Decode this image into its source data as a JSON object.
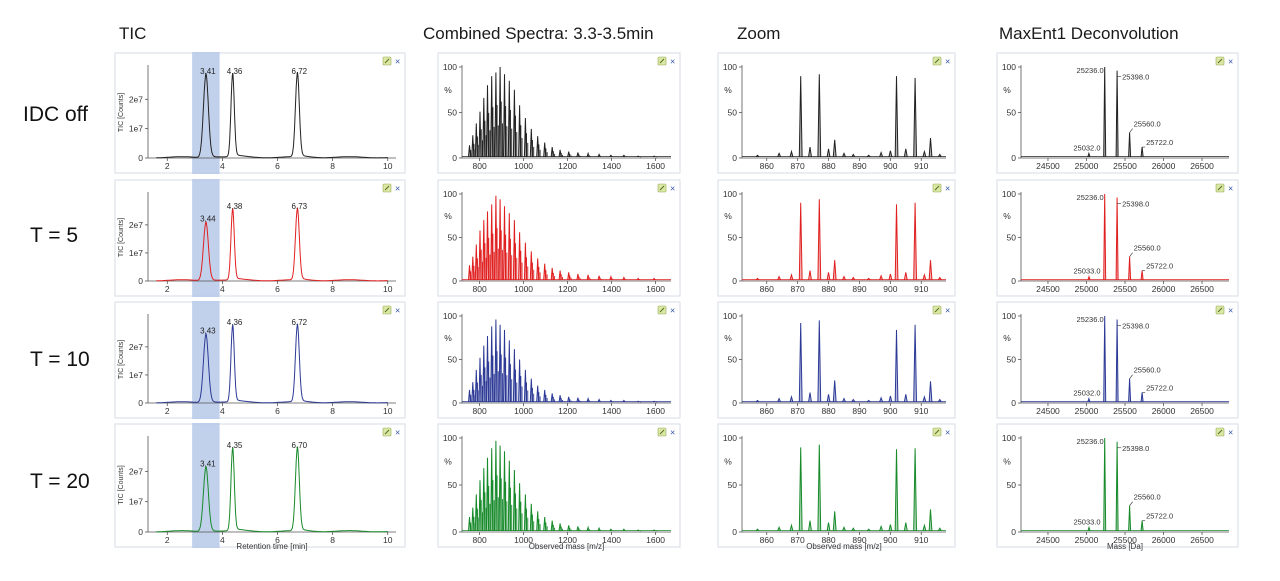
{
  "figure": {
    "column_titles": [
      "TIC",
      "Combined Spectra: 3.3-3.5min",
      "Zoom",
      "MaxEnt1 Deconvolution"
    ],
    "row_labels": [
      "IDC off",
      "T = 5",
      "T = 10",
      "T = 20"
    ],
    "row_colors": [
      "#222222",
      "#e02020",
      "#2c3a96",
      "#178a2a"
    ],
    "highlight_color": "#b7c9e8",
    "panel_icon": "pin-close-icon"
  },
  "chart_data": [
    {
      "panel": "tic",
      "type": "line",
      "title": "TIC",
      "xlabel": "Retention time [min]",
      "ylabel": "TIC [Counts]",
      "xlim": [
        1.3,
        10.3
      ],
      "xticks": [
        2,
        4,
        6,
        8,
        10
      ],
      "ylim": [
        0,
        31000000.0
      ],
      "yticks": [
        0,
        10000000.0,
        20000000.0
      ],
      "yticklabels": [
        "0",
        "1e7",
        "2e7"
      ],
      "highlight_range": [
        3.3,
        3.5
      ],
      "peak_positions": [
        3.4,
        4.37,
        6.72
      ],
      "peak_widths": [
        0.09,
        0.06,
        0.07
      ],
      "series": [
        {
          "name": "IDC off",
          "peak_heights": [
            28000000.0,
            28000000.0,
            28000000.0
          ],
          "peak_labels": [
            "3.41",
            "4.36",
            "6.72"
          ]
        },
        {
          "name": "T = 5",
          "peak_heights": [
            20500000.0,
            25000000.0,
            25000000.0
          ],
          "peak_labels": [
            "3.44",
            "4.38",
            "6.73"
          ]
        },
        {
          "name": "T = 10",
          "peak_heights": [
            24000000.0,
            27000000.0,
            27000000.0
          ],
          "peak_labels": [
            "3.43",
            "4.36",
            "6.72"
          ]
        },
        {
          "name": "T = 20",
          "peak_heights": [
            21000000.0,
            27000000.0,
            27000000.0
          ],
          "peak_labels": [
            "3.41",
            "4.35",
            "6.70"
          ]
        }
      ]
    },
    {
      "panel": "combined",
      "type": "line",
      "title": "Combined Spectra: 3.3-3.5min",
      "xlabel": "Observed mass [m/z]",
      "ylabel": "%",
      "xlim": [
        720,
        1670
      ],
      "xticks": [
        800,
        1000,
        1200,
        1400,
        1600
      ],
      "ylim": [
        0,
        100
      ],
      "yticks": [
        0,
        50,
        100
      ],
      "series": [
        {
          "name": "IDC off",
          "peaks": [
            [
              754,
              14
            ],
            [
              769,
              25
            ],
            [
              785,
              38
            ],
            [
              802,
              51
            ],
            [
              819,
              66
            ],
            [
              836,
              80
            ],
            [
              855,
              90
            ],
            [
              874,
              94
            ],
            [
              893,
              100
            ],
            [
              913,
              92
            ],
            [
              935,
              85
            ],
            [
              958,
              75
            ],
            [
              982,
              58
            ],
            [
              1008,
              44
            ],
            [
              1035,
              32
            ],
            [
              1064,
              24
            ],
            [
              1096,
              17
            ],
            [
              1130,
              12
            ],
            [
              1166,
              9
            ],
            [
              1205,
              7
            ],
            [
              1247,
              6
            ],
            [
              1293,
              5
            ],
            [
              1343,
              4
            ],
            [
              1397,
              3
            ],
            [
              1456,
              3
            ],
            [
              1521,
              2
            ],
            [
              1593,
              2
            ]
          ]
        },
        {
          "name": "T = 5",
          "peaks": [
            [
              754,
              18
            ],
            [
              769,
              28
            ],
            [
              785,
              42
            ],
            [
              802,
              58
            ],
            [
              819,
              70
            ],
            [
              836,
              80
            ],
            [
              855,
              88
            ],
            [
              874,
              98
            ],
            [
              893,
              94
            ],
            [
              913,
              86
            ],
            [
              935,
              78
            ],
            [
              958,
              70
            ],
            [
              982,
              56
            ],
            [
              1008,
              44
            ],
            [
              1035,
              34
            ],
            [
              1064,
              26
            ],
            [
              1096,
              20
            ],
            [
              1130,
              15
            ],
            [
              1166,
              12
            ],
            [
              1205,
              10
            ],
            [
              1247,
              8
            ],
            [
              1293,
              7
            ],
            [
              1343,
              6
            ],
            [
              1397,
              5
            ],
            [
              1456,
              4
            ],
            [
              1521,
              3
            ],
            [
              1593,
              3
            ]
          ]
        },
        {
          "name": "T = 10",
          "peaks": [
            [
              754,
              15
            ],
            [
              769,
              24
            ],
            [
              785,
              38
            ],
            [
              802,
              52
            ],
            [
              819,
              66
            ],
            [
              836,
              77
            ],
            [
              855,
              88
            ],
            [
              874,
              96
            ],
            [
              893,
              90
            ],
            [
              913,
              84
            ],
            [
              935,
              72
            ],
            [
              958,
              62
            ],
            [
              982,
              50
            ],
            [
              1008,
              38
            ],
            [
              1035,
              28
            ],
            [
              1064,
              20
            ],
            [
              1096,
              15
            ],
            [
              1130,
              11
            ],
            [
              1166,
              9
            ],
            [
              1205,
              7
            ],
            [
              1247,
              6
            ],
            [
              1293,
              5
            ],
            [
              1343,
              4
            ],
            [
              1397,
              3
            ],
            [
              1456,
              3
            ],
            [
              1521,
              2
            ],
            [
              1593,
              2
            ]
          ]
        },
        {
          "name": "T = 20",
          "peaks": [
            [
              754,
              16
            ],
            [
              769,
              26
            ],
            [
              785,
              40
            ],
            [
              802,
              55
            ],
            [
              819,
              68
            ],
            [
              836,
              79
            ],
            [
              855,
              89
            ],
            [
              874,
              97
            ],
            [
              893,
              92
            ],
            [
              913,
              86
            ],
            [
              935,
              76
            ],
            [
              958,
              66
            ],
            [
              982,
              52
            ],
            [
              1008,
              40
            ],
            [
              1035,
              30
            ],
            [
              1064,
              22
            ],
            [
              1096,
              16
            ],
            [
              1130,
              12
            ],
            [
              1166,
              9
            ],
            [
              1205,
              7
            ],
            [
              1247,
              6
            ],
            [
              1293,
              5
            ],
            [
              1343,
              4
            ],
            [
              1397,
              3
            ],
            [
              1456,
              3
            ],
            [
              1521,
              2
            ],
            [
              1593,
              2
            ]
          ]
        }
      ]
    },
    {
      "panel": "zoom",
      "type": "line",
      "title": "Zoom",
      "xlabel": "Observed mass [m/z]",
      "ylabel": "%",
      "xlim": [
        852,
        918
      ],
      "xticks": [
        860,
        870,
        880,
        890,
        900,
        910
      ],
      "ylim": [
        0,
        100
      ],
      "yticks": [
        0,
        50,
        100
      ],
      "series": [
        {
          "name": "IDC off",
          "peaks": [
            [
              857,
              3
            ],
            [
              864,
              5
            ],
            [
              868,
              7
            ],
            [
              871,
              90
            ],
            [
              874,
              12
            ],
            [
              877,
              92
            ],
            [
              880,
              10
            ],
            [
              882,
              20
            ],
            [
              885,
              5
            ],
            [
              888,
              4
            ],
            [
              893,
              3
            ],
            [
              897,
              6
            ],
            [
              900,
              8
            ],
            [
              902,
              90
            ],
            [
              905,
              10
            ],
            [
              908,
              88
            ],
            [
              911,
              7
            ],
            [
              913,
              22
            ],
            [
              916,
              4
            ]
          ]
        },
        {
          "name": "T = 5",
          "peaks": [
            [
              857,
              3
            ],
            [
              864,
              5
            ],
            [
              868,
              7
            ],
            [
              871,
              90
            ],
            [
              874,
              12
            ],
            [
              877,
              94
            ],
            [
              880,
              10
            ],
            [
              882,
              24
            ],
            [
              885,
              5
            ],
            [
              888,
              4
            ],
            [
              893,
              3
            ],
            [
              897,
              6
            ],
            [
              900,
              8
            ],
            [
              902,
              88
            ],
            [
              905,
              10
            ],
            [
              908,
              90
            ],
            [
              911,
              7
            ],
            [
              913,
              24
            ],
            [
              916,
              4
            ]
          ]
        },
        {
          "name": "T = 10",
          "peaks": [
            [
              857,
              3
            ],
            [
              864,
              5
            ],
            [
              868,
              7
            ],
            [
              871,
              92
            ],
            [
              874,
              12
            ],
            [
              877,
              95
            ],
            [
              880,
              10
            ],
            [
              882,
              26
            ],
            [
              885,
              5
            ],
            [
              888,
              4
            ],
            [
              893,
              3
            ],
            [
              897,
              6
            ],
            [
              900,
              8
            ],
            [
              902,
              84
            ],
            [
              905,
              10
            ],
            [
              908,
              90
            ],
            [
              911,
              7
            ],
            [
              913,
              25
            ],
            [
              916,
              4
            ]
          ]
        },
        {
          "name": "T = 20",
          "peaks": [
            [
              857,
              3
            ],
            [
              864,
              5
            ],
            [
              868,
              7
            ],
            [
              871,
              90
            ],
            [
              874,
              12
            ],
            [
              877,
              93
            ],
            [
              880,
              10
            ],
            [
              882,
              22
            ],
            [
              885,
              5
            ],
            [
              888,
              4
            ],
            [
              893,
              3
            ],
            [
              897,
              6
            ],
            [
              900,
              8
            ],
            [
              902,
              88
            ],
            [
              905,
              10
            ],
            [
              908,
              89
            ],
            [
              911,
              7
            ],
            [
              913,
              24
            ],
            [
              916,
              4
            ]
          ]
        }
      ]
    },
    {
      "panel": "maxent",
      "type": "line",
      "title": "MaxEnt1 Deconvolution",
      "xlabel": "Mass [Da]",
      "ylabel": "%",
      "xlim": [
        24150,
        26850
      ],
      "xticks": [
        24500,
        25000,
        25500,
        26000,
        26500
      ],
      "ylim": [
        0,
        100
      ],
      "yticks": [
        0,
        50,
        100
      ],
      "series": [
        {
          "name": "IDC off",
          "peaks": [
            [
              25032,
              5
            ],
            [
              25236,
              100
            ],
            [
              25398,
              96
            ],
            [
              25560,
              28
            ],
            [
              25722,
              12
            ]
          ],
          "labels": [
            "25032.0",
            "25236.0",
            "25398.0",
            "25560.0",
            "25722.0"
          ]
        },
        {
          "name": "T = 5",
          "peaks": [
            [
              25033,
              5
            ],
            [
              25236,
              100
            ],
            [
              25398,
              96
            ],
            [
              25560,
              28
            ],
            [
              25722,
              12
            ]
          ],
          "labels": [
            "25033.0",
            "25236.0",
            "25398.0",
            "25560.0",
            "25722.0"
          ]
        },
        {
          "name": "T = 10",
          "peaks": [
            [
              25032,
              5
            ],
            [
              25236,
              100
            ],
            [
              25398,
              96
            ],
            [
              25560,
              28
            ],
            [
              25722,
              12
            ]
          ],
          "labels": [
            "25032.0",
            "25236.0",
            "25398.0",
            "25560.0",
            "25722.0"
          ]
        },
        {
          "name": "T = 20",
          "peaks": [
            [
              25033,
              5
            ],
            [
              25236,
              100
            ],
            [
              25398,
              96
            ],
            [
              25560,
              28
            ],
            [
              25722,
              12
            ]
          ],
          "labels": [
            "25033.0",
            "25236.0",
            "25398.0",
            "25560.0",
            "25722.0"
          ]
        }
      ]
    }
  ]
}
